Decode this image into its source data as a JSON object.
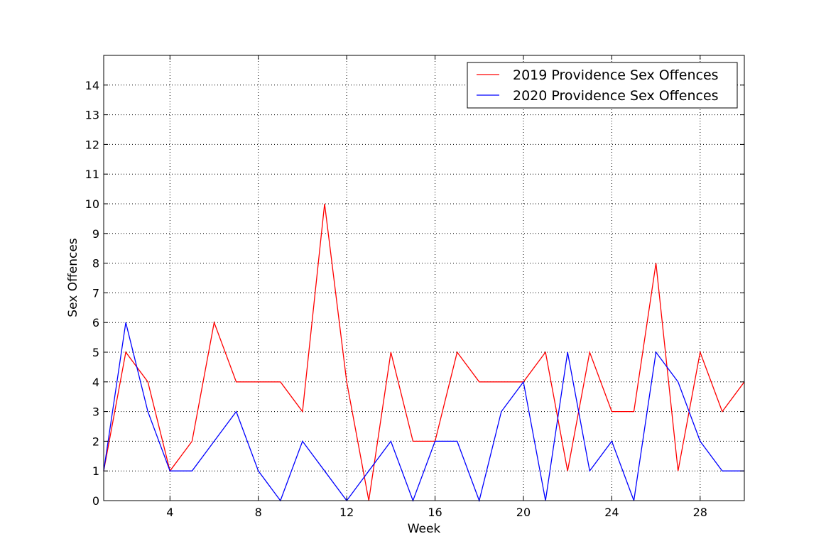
{
  "chart_data": {
    "type": "line",
    "title": "",
    "xlabel": "Week",
    "ylabel": "Sex Offences",
    "xlim": [
      1,
      30
    ],
    "ylim": [
      0,
      15
    ],
    "xticks": [
      4,
      8,
      12,
      16,
      20,
      24,
      28
    ],
    "yticks": [
      0,
      1,
      2,
      3,
      4,
      5,
      6,
      7,
      8,
      9,
      10,
      11,
      12,
      13,
      14
    ],
    "grid": true,
    "legend_position": "upper right",
    "x": [
      1,
      2,
      3,
      4,
      5,
      6,
      7,
      8,
      9,
      10,
      11,
      12,
      13,
      14,
      15,
      16,
      17,
      18,
      19,
      20,
      21,
      22,
      23,
      24,
      25,
      26,
      27,
      28,
      29,
      30
    ],
    "series": [
      {
        "name": "2019 Providence Sex Offences",
        "color": "#ff0000",
        "values": [
          1,
          5,
          4,
          1,
          2,
          6,
          4,
          4,
          4,
          3,
          10,
          4,
          0,
          5,
          2,
          2,
          5,
          4,
          4,
          4,
          5,
          1,
          5,
          3,
          3,
          8,
          1,
          5,
          3,
          4
        ]
      },
      {
        "name": "2020 Providence Sex Offences",
        "color": "#0000ff",
        "values": [
          1,
          6,
          3,
          1,
          1,
          2,
          3,
          1,
          0,
          2,
          1,
          0,
          1,
          2,
          0,
          2,
          2,
          0,
          3,
          4,
          0,
          5,
          1,
          2,
          0,
          5,
          4,
          2,
          1,
          1
        ]
      }
    ]
  }
}
